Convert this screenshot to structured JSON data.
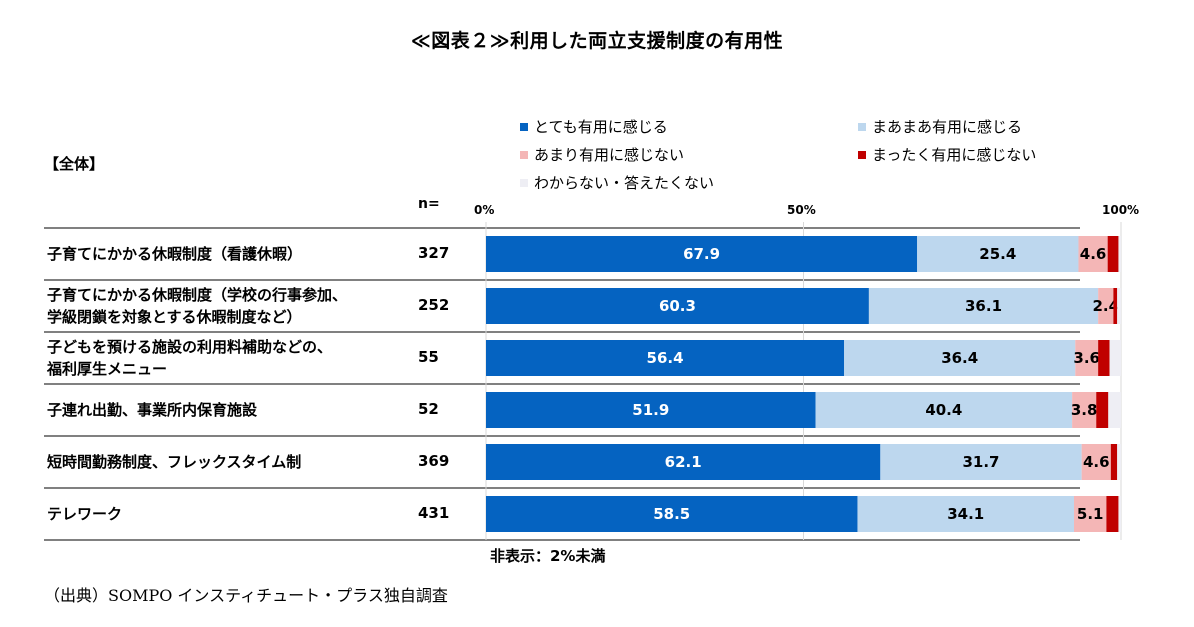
{
  "title": "≪図表２≫利用した両立支援制度の有用性",
  "section_label": "【全体】",
  "n_label": "n=",
  "note": "非表示：2%未満",
  "source": "（出典）SOMPO インスティチュート・プラス独自調査",
  "chart_data": {
    "type": "bar",
    "orientation": "horizontal",
    "stacked": "percent",
    "title": "≪図表２≫利用した両立支援制度の有用性",
    "x_ticks": [
      "0%",
      "50%",
      "100%"
    ],
    "xlim": [
      0,
      100
    ],
    "legend_position": "top-right",
    "categories": [
      [
        "子育てにかかる休暇制度（看護休暇）"
      ],
      [
        "子育てにかかる休暇制度（学校の行事参加、",
        "学級閉鎖を対象とする休暇制度など）"
      ],
      [
        "子どもを預ける施設の利用料補助などの、",
        "福利厚生メニュー"
      ],
      [
        "子連れ出勤、事業所内保育施設"
      ],
      [
        "短時間勤務制度、フレックスタイム制"
      ],
      [
        "テレワーク"
      ]
    ],
    "n": [
      "327",
      "252",
      "55",
      "52",
      "369",
      "431"
    ],
    "series": [
      {
        "name": "とても有用に感じる",
        "color": "#0563c1",
        "label_color": "#ffffff",
        "values": [
          67.9,
          60.3,
          56.4,
          51.9,
          62.1,
          58.5
        ],
        "labels": [
          "67.9",
          "60.3",
          "56.4",
          "51.9",
          "62.1",
          "58.5"
        ]
      },
      {
        "name": "まあまあ有用に感じる",
        "color": "#bdd7ee",
        "label_color": "#000000",
        "values": [
          25.4,
          36.1,
          36.4,
          40.4,
          31.7,
          34.1
        ],
        "labels": [
          "25.4",
          "36.1",
          "36.4",
          "40.4",
          "31.7",
          "34.1"
        ]
      },
      {
        "name": "あまり有用に感じない",
        "color": "#f4b6b6",
        "label_color": "#000000",
        "values": [
          4.6,
          2.4,
          3.6,
          3.8,
          4.6,
          5.1
        ],
        "labels": [
          "4.6",
          "2.4",
          "3.6",
          "3.8",
          "4.6",
          "5.1"
        ]
      },
      {
        "name": "まったく有用に感じない",
        "color": "#c00000",
        "label_color": "#000000",
        "values": [
          1.7,
          0.6,
          1.8,
          1.9,
          1.0,
          1.9
        ],
        "labels": [
          "",
          "",
          "",
          "",
          "",
          ""
        ]
      },
      {
        "name": "わからない・答えたくない",
        "color": "#eeeef4",
        "label_color": "#000000",
        "values": [
          0.4,
          0.6,
          1.8,
          2.0,
          0.6,
          0.4
        ],
        "labels": [
          "",
          "",
          "",
          "",
          "",
          ""
        ]
      }
    ]
  }
}
